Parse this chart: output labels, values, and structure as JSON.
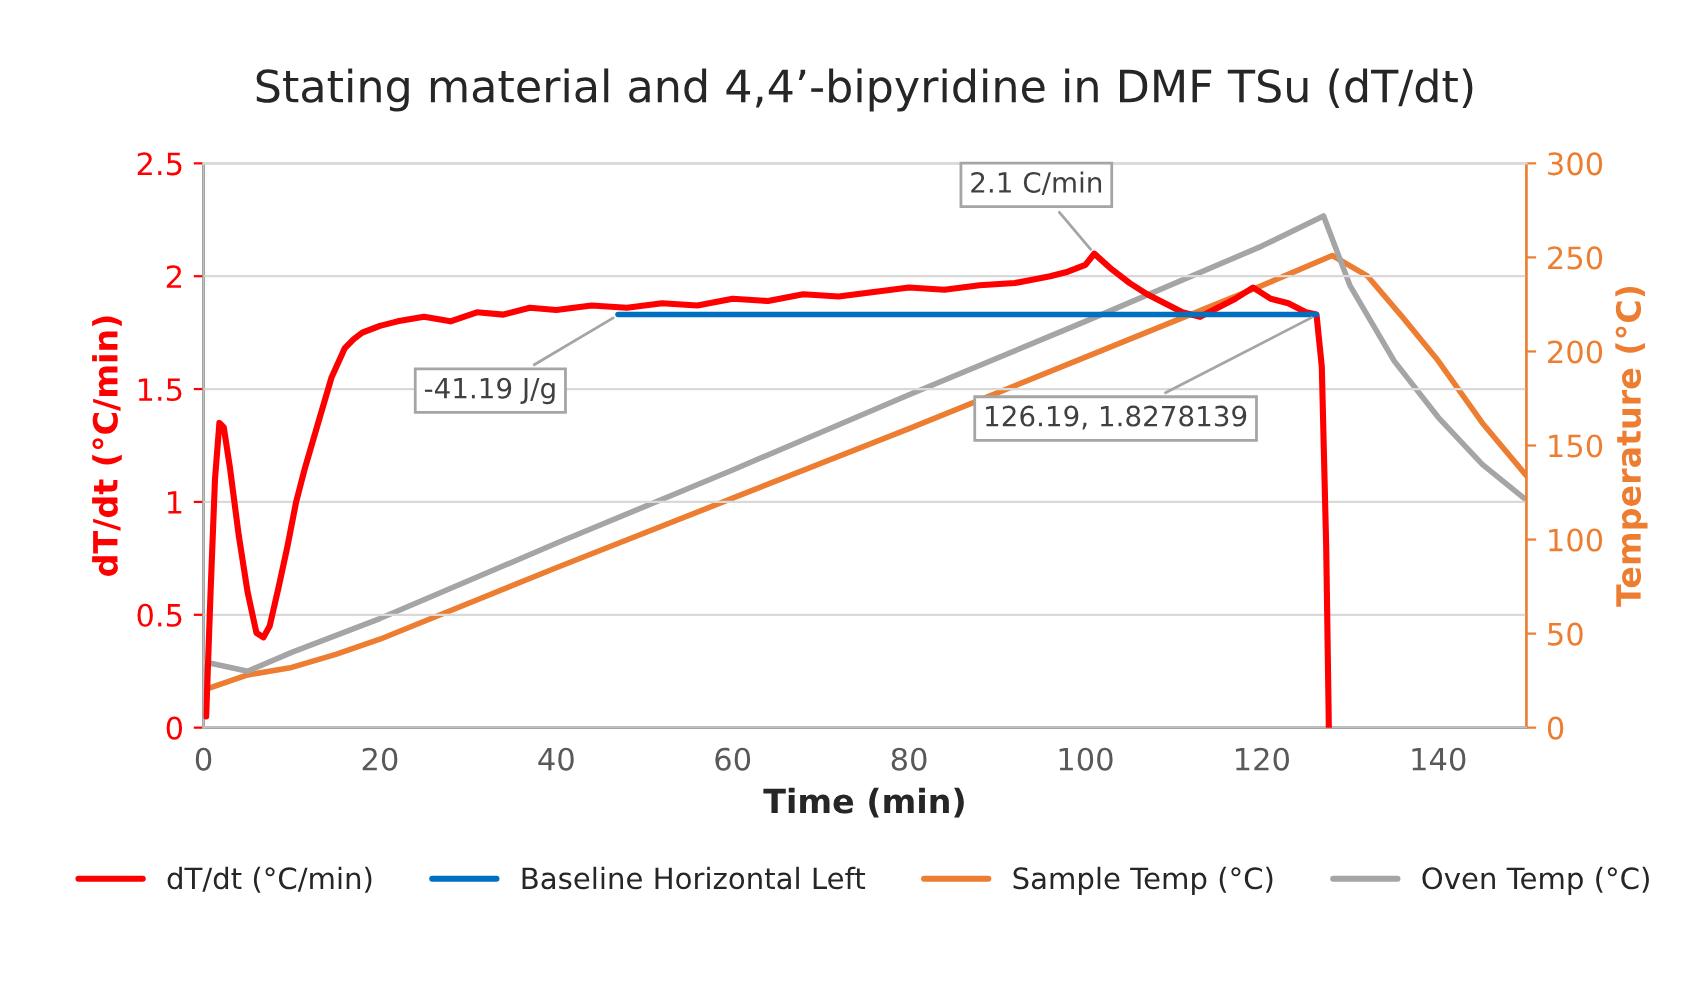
{
  "chart_data": {
    "type": "line",
    "title": "Stating material and 4,4’-bipyridine in DMF TSu (dT/dt)",
    "xlabel": "Time (min)",
    "ylabel": "dT/dt (°C/min)",
    "y2label": "Temperature (°C)",
    "xlim": [
      0,
      150
    ],
    "xticks": [
      0,
      20,
      40,
      60,
      80,
      100,
      120,
      140
    ],
    "ylim": [
      0,
      2.5
    ],
    "yticks": [
      0,
      0.5,
      1,
      1.5,
      2,
      2.5
    ],
    "y2lim": [
      0,
      300
    ],
    "y2ticks": [
      0,
      50,
      100,
      150,
      200,
      250,
      300
    ],
    "grid": "y",
    "legend": "bottom",
    "line_style": "solid",
    "marker": "none",
    "series": [
      {
        "name": "dT/dt (°C/min)",
        "color": "#ff0000",
        "x": [
          0.3,
          0.8,
          1.3,
          1.8,
          2.3,
          3,
          4,
          5,
          6,
          6.8,
          7.5,
          8.5,
          9.5,
          10.5,
          11.5,
          13,
          14.5,
          16,
          17,
          18,
          20,
          22,
          25,
          28,
          31,
          34,
          37,
          40,
          44,
          48,
          52,
          56,
          60,
          64,
          68,
          72,
          76,
          80,
          84,
          88,
          92,
          96,
          98,
          100,
          101,
          103,
          105,
          107,
          109,
          111,
          113,
          115,
          117,
          119,
          121,
          123,
          125,
          126.2,
          126.8,
          127.3,
          127.6
        ],
        "values": [
          0.05,
          0.6,
          1.1,
          1.35,
          1.33,
          1.15,
          0.85,
          0.6,
          0.42,
          0.4,
          0.45,
          0.62,
          0.8,
          1.0,
          1.15,
          1.35,
          1.55,
          1.68,
          1.72,
          1.75,
          1.78,
          1.8,
          1.82,
          1.8,
          1.84,
          1.83,
          1.86,
          1.85,
          1.87,
          1.86,
          1.88,
          1.87,
          1.9,
          1.89,
          1.92,
          1.91,
          1.93,
          1.95,
          1.94,
          1.96,
          1.97,
          2.0,
          2.02,
          2.05,
          2.1,
          2.03,
          1.97,
          1.92,
          1.88,
          1.84,
          1.82,
          1.86,
          1.9,
          1.95,
          1.9,
          1.88,
          1.84,
          1.83,
          1.6,
          0.8,
          0
        ]
      },
      {
        "name": "Baseline Horizontal Left",
        "color": "#0070c0",
        "x": [
          47,
          126.19
        ],
        "values": [
          1.83,
          1.83
        ]
      },
      {
        "name": "Sample Temp (°C)",
        "color": "#ed7d31",
        "axis": "y2",
        "x": [
          0,
          5,
          10,
          15,
          20,
          40,
          60,
          80,
          100,
          120,
          128,
          132,
          136,
          140,
          145,
          150
        ],
        "values": [
          20,
          28,
          32,
          39,
          47,
          85,
          122,
          159,
          197,
          235,
          251,
          240,
          218,
          195,
          162,
          134
        ]
      },
      {
        "name": "Oven Temp (°C)",
        "color": "#a5a5a5",
        "axis": "y2",
        "x": [
          0,
          2,
          5,
          10,
          20,
          40,
          60,
          80,
          100,
          120,
          127,
          130,
          135,
          140,
          145,
          150
        ],
        "values": [
          35,
          33,
          30,
          40,
          58,
          98,
          137,
          177,
          216,
          256,
          272,
          235,
          195,
          165,
          140,
          121
        ]
      }
    ],
    "annotations": [
      {
        "text": "2.1 C/min",
        "x": 101,
        "y": 2.1
      },
      {
        "text": "-41.19 J/g",
        "x": 47,
        "y": 1.828
      },
      {
        "text": "126.19, 1.8278139",
        "x": 126.19,
        "y": 1.8278
      }
    ]
  }
}
